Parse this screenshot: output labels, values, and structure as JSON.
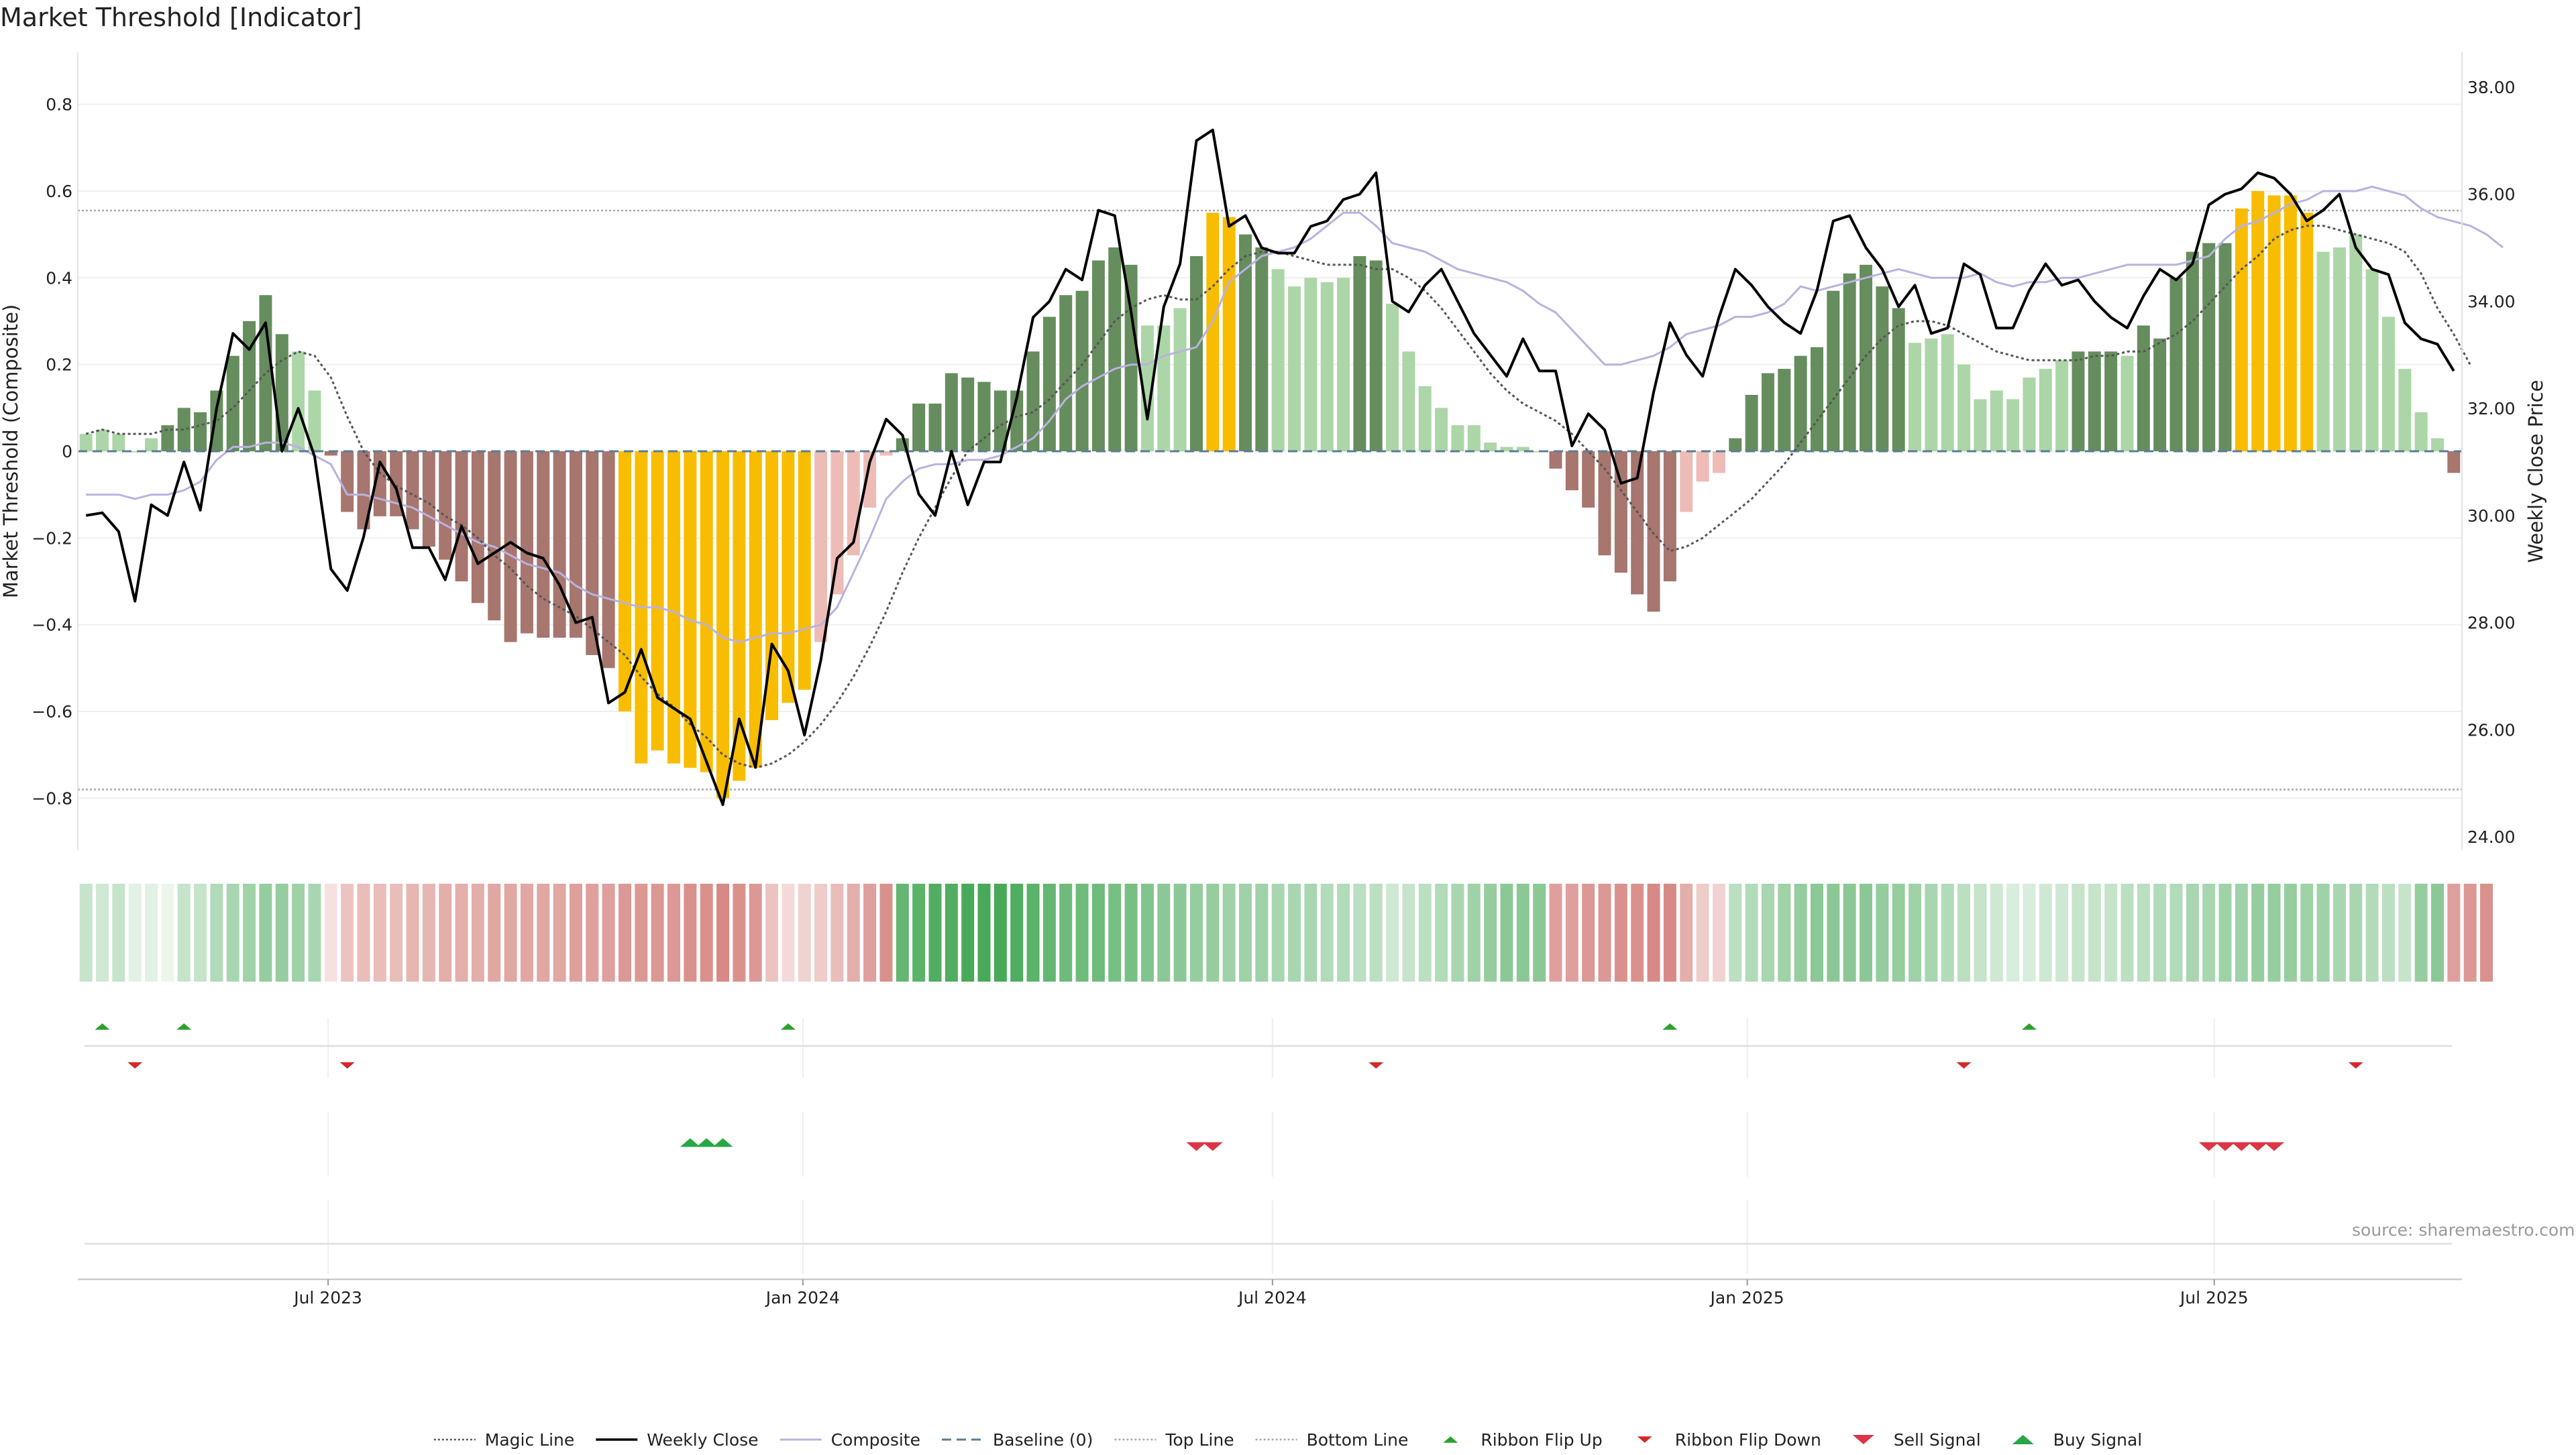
{
  "title": "Market Threshold [Indicator]",
  "source": "source: sharemaestro.com",
  "chart_data": {
    "type": "bar",
    "title": "Market Threshold [Indicator]",
    "ylabel": "Market Threshold (Composite)",
    "y2label": "Weekly Close Price",
    "ylim": [
      -0.92,
      0.92
    ],
    "y2lim": [
      23.75,
      38.65
    ],
    "yticks": [
      -0.8,
      -0.6,
      -0.4,
      -0.2,
      0,
      0.2,
      0.4,
      0.6,
      0.8
    ],
    "ytick_labels": [
      "−0.8",
      "−0.6",
      "−0.4",
      "−0.2",
      "0",
      "0.2",
      "0.4",
      "0.6",
      "0.8"
    ],
    "y2ticks": [
      24,
      26,
      28,
      30,
      32,
      34,
      36,
      38
    ],
    "y2tick_labels": [
      "24.00",
      "26.00",
      "28.00",
      "30.00",
      "32.00",
      "34.00",
      "36.00",
      "38.00"
    ],
    "x_start": "2023-03-26",
    "x_end": "2025-10-05",
    "x_start_date": "2023-03-20",
    "x_ticks": [
      "2023-07-01",
      "2024-01-01",
      "2024-07-01",
      "2025-01-01",
      "2025-07-01"
    ],
    "x_tick_labels": [
      "Jul 2023",
      "Jan 2024",
      "Jul 2024",
      "Jan 2025",
      "Jul 2025"
    ],
    "top_line": 0.555,
    "bottom_line": -0.78,
    "composite": [
      0.04,
      0.05,
      0.04,
      0.0,
      0.03,
      0.06,
      0.1,
      0.09,
      0.14,
      0.22,
      0.3,
      0.36,
      0.27,
      0.23,
      0.14,
      -0.01,
      -0.14,
      -0.18,
      -0.15,
      -0.15,
      -0.18,
      -0.22,
      -0.25,
      -0.3,
      -0.35,
      -0.39,
      -0.44,
      -0.42,
      -0.43,
      -0.43,
      -0.43,
      -0.47,
      -0.5,
      -0.6,
      -0.72,
      -0.69,
      -0.72,
      -0.73,
      -0.74,
      -0.8,
      -0.76,
      -0.73,
      -0.62,
      -0.58,
      -0.55,
      -0.44,
      -0.33,
      -0.24,
      -0.13,
      -0.01,
      0.03,
      0.11,
      0.11,
      0.18,
      0.17,
      0.16,
      0.14,
      0.14,
      0.23,
      0.31,
      0.36,
      0.37,
      0.44,
      0.47,
      0.43,
      0.29,
      0.29,
      0.33,
      0.45,
      0.55,
      0.54,
      0.5,
      0.47,
      0.42,
      0.38,
      0.4,
      0.39,
      0.4,
      0.45,
      0.44,
      0.34,
      0.23,
      0.15,
      0.1,
      0.06,
      0.06,
      0.02,
      0.01,
      0.01,
      0.0,
      -0.04,
      -0.09,
      -0.13,
      -0.24,
      -0.28,
      -0.33,
      -0.37,
      -0.3,
      -0.14,
      -0.07,
      -0.05,
      0.03,
      0.13,
      0.18,
      0.19,
      0.22,
      0.24,
      0.37,
      0.41,
      0.43,
      0.38,
      0.33,
      0.25,
      0.26,
      0.27,
      0.2,
      0.12,
      0.14,
      0.12,
      0.17,
      0.19,
      0.21,
      0.23,
      0.23,
      0.23,
      0.22,
      0.29,
      0.26,
      0.4,
      0.46,
      0.48,
      0.48,
      0.56,
      0.6,
      0.59,
      0.59,
      0.55,
      0.46,
      0.47,
      0.5,
      0.42,
      0.31,
      0.19,
      0.09,
      0.03,
      -0.05
    ],
    "composite_smooth": [
      -0.1,
      -0.1,
      -0.1,
      -0.11,
      -0.1,
      -0.1,
      -0.09,
      -0.07,
      -0.02,
      0.01,
      0.01,
      0.02,
      0.02,
      0.01,
      -0.01,
      -0.03,
      -0.1,
      -0.1,
      -0.11,
      -0.12,
      -0.13,
      -0.15,
      -0.17,
      -0.19,
      -0.21,
      -0.22,
      -0.24,
      -0.26,
      -0.27,
      -0.28,
      -0.31,
      -0.33,
      -0.34,
      -0.35,
      -0.36,
      -0.36,
      -0.37,
      -0.39,
      -0.4,
      -0.43,
      -0.44,
      -0.43,
      -0.42,
      -0.42,
      -0.41,
      -0.4,
      -0.36,
      -0.28,
      -0.2,
      -0.11,
      -0.07,
      -0.04,
      -0.03,
      -0.03,
      -0.02,
      -0.02,
      -0.01,
      0.01,
      0.03,
      0.07,
      0.12,
      0.15,
      0.17,
      0.19,
      0.2,
      0.2,
      0.22,
      0.23,
      0.24,
      0.3,
      0.39,
      0.42,
      0.45,
      0.46,
      0.47,
      0.49,
      0.52,
      0.55,
      0.55,
      0.52,
      0.48,
      0.47,
      0.46,
      0.44,
      0.42,
      0.41,
      0.4,
      0.39,
      0.37,
      0.34,
      0.32,
      0.28,
      0.24,
      0.2,
      0.2,
      0.21,
      0.22,
      0.24,
      0.27,
      0.28,
      0.29,
      0.31,
      0.31,
      0.32,
      0.34,
      0.38,
      0.37,
      0.38,
      0.39,
      0.4,
      0.41,
      0.42,
      0.41,
      0.4,
      0.4,
      0.4,
      0.41,
      0.39,
      0.38,
      0.39,
      0.39,
      0.4,
      0.4,
      0.41,
      0.42,
      0.43,
      0.43,
      0.43,
      0.43,
      0.44,
      0.45,
      0.49,
      0.52,
      0.53,
      0.55,
      0.57,
      0.58,
      0.6,
      0.6,
      0.6,
      0.61,
      0.6,
      0.59,
      0.56,
      0.54,
      0.53,
      0.52,
      0.5,
      0.47
    ],
    "magic_line": [
      0.04,
      0.05,
      0.04,
      0.04,
      0.04,
      0.05,
      0.05,
      0.06,
      0.07,
      0.1,
      0.14,
      0.18,
      0.21,
      0.23,
      0.22,
      0.17,
      0.08,
      0.0,
      -0.05,
      -0.08,
      -0.1,
      -0.12,
      -0.15,
      -0.17,
      -0.2,
      -0.24,
      -0.27,
      -0.31,
      -0.34,
      -0.36,
      -0.38,
      -0.41,
      -0.44,
      -0.47,
      -0.52,
      -0.56,
      -0.59,
      -0.63,
      -0.66,
      -0.7,
      -0.72,
      -0.73,
      -0.72,
      -0.7,
      -0.67,
      -0.63,
      -0.58,
      -0.52,
      -0.45,
      -0.37,
      -0.28,
      -0.2,
      -0.13,
      -0.06,
      0.0,
      0.03,
      0.06,
      0.08,
      0.09,
      0.12,
      0.16,
      0.2,
      0.25,
      0.3,
      0.33,
      0.35,
      0.36,
      0.35,
      0.35,
      0.38,
      0.42,
      0.45,
      0.46,
      0.46,
      0.45,
      0.44,
      0.43,
      0.43,
      0.43,
      0.42,
      0.42,
      0.4,
      0.37,
      0.33,
      0.28,
      0.23,
      0.18,
      0.14,
      0.11,
      0.09,
      0.07,
      0.04,
      0.0,
      -0.04,
      -0.09,
      -0.14,
      -0.19,
      -0.23,
      -0.22,
      -0.2,
      -0.17,
      -0.14,
      -0.11,
      -0.07,
      -0.03,
      0.02,
      0.07,
      0.12,
      0.17,
      0.22,
      0.26,
      0.29,
      0.3,
      0.3,
      0.29,
      0.27,
      0.25,
      0.23,
      0.22,
      0.21,
      0.21,
      0.21,
      0.21,
      0.22,
      0.22,
      0.23,
      0.23,
      0.25,
      0.27,
      0.3,
      0.34,
      0.38,
      0.42,
      0.45,
      0.49,
      0.51,
      0.52,
      0.52,
      0.51,
      0.5,
      0.49,
      0.48,
      0.46,
      0.41,
      0.33,
      0.27,
      0.2
    ],
    "weekly_close": [
      30.0,
      30.05,
      29.7,
      28.4,
      30.2,
      30.0,
      31.0,
      30.1,
      32.0,
      33.4,
      33.1,
      33.6,
      31.2,
      32.0,
      31.1,
      29.0,
      28.6,
      29.6,
      31.0,
      30.5,
      29.4,
      29.4,
      28.8,
      29.8,
      29.1,
      29.3,
      29.5,
      29.3,
      29.2,
      28.7,
      28.0,
      28.1,
      26.5,
      26.7,
      27.5,
      26.6,
      26.4,
      26.2,
      25.4,
      24.6,
      26.2,
      25.3,
      27.6,
      27.1,
      25.9,
      27.3,
      29.2,
      29.5,
      31.0,
      31.8,
      31.5,
      30.4,
      30.0,
      31.2,
      30.2,
      31.0,
      31.0,
      32.2,
      33.7,
      34.0,
      34.6,
      34.4,
      35.7,
      35.6,
      33.8,
      31.8,
      33.9,
      34.7,
      37.0,
      37.2,
      35.4,
      35.6,
      35.0,
      34.9,
      34.9,
      35.4,
      35.5,
      35.9,
      36.0,
      36.4,
      34.0,
      33.8,
      34.3,
      34.6,
      34.0,
      33.4,
      33.0,
      32.6,
      33.3,
      32.7,
      32.7,
      31.3,
      31.9,
      31.6,
      30.6,
      30.7,
      32.3,
      33.6,
      33.0,
      32.6,
      33.7,
      34.6,
      34.3,
      33.9,
      33.6,
      33.4,
      34.2,
      35.5,
      35.6,
      35.0,
      34.6,
      33.9,
      34.3,
      33.4,
      33.5,
      34.7,
      34.5,
      33.5,
      33.5,
      34.2,
      34.7,
      34.3,
      34.4,
      34.0,
      33.7,
      33.5,
      34.1,
      34.6,
      34.4,
      34.7,
      35.8,
      36.0,
      36.1,
      36.4,
      36.3,
      36.0,
      35.5,
      35.7,
      36.0,
      35.0,
      34.6,
      34.5,
      33.6,
      33.3,
      33.2,
      32.7
    ]
  },
  "ribbon": [
    0.3,
    0.25,
    0.3,
    0.15,
    0.15,
    0.1,
    0.3,
    0.3,
    0.4,
    0.45,
    0.5,
    0.55,
    0.55,
    0.5,
    0.45,
    0.2,
    0.4,
    0.45,
    0.45,
    0.45,
    0.5,
    0.5,
    0.55,
    0.55,
    0.55,
    0.6,
    0.6,
    0.6,
    0.6,
    0.6,
    0.65,
    0.65,
    0.65,
    0.7,
    0.7,
    0.7,
    0.7,
    0.75,
    0.75,
    0.8,
    0.75,
    0.7,
    0.4,
    0.25,
    0.3,
    0.35,
    0.45,
    0.55,
    0.65,
    0.75,
    0.8,
    0.85,
    0.9,
    0.9,
    0.95,
    0.95,
    0.95,
    0.9,
    0.85,
    0.8,
    0.75,
    0.75,
    0.75,
    0.7,
    0.7,
    0.65,
    0.6,
    0.6,
    0.55,
    0.55,
    0.5,
    0.5,
    0.5,
    0.45,
    0.45,
    0.45,
    0.4,
    0.4,
    0.35,
    0.35,
    0.25,
    0.3,
    0.35,
    0.4,
    0.45,
    0.5,
    0.55,
    0.6,
    0.6,
    0.6,
    0.65,
    0.65,
    0.7,
    0.7,
    0.75,
    0.75,
    0.8,
    0.8,
    0.55,
    0.35,
    0.3,
    0.35,
    0.4,
    0.45,
    0.5,
    0.55,
    0.6,
    0.6,
    0.6,
    0.6,
    0.55,
    0.55,
    0.5,
    0.45,
    0.4,
    0.35,
    0.3,
    0.25,
    0.2,
    0.2,
    0.25,
    0.25,
    0.3,
    0.3,
    0.3,
    0.35,
    0.35,
    0.4,
    0.4,
    0.45,
    0.45,
    0.5,
    0.5,
    0.55,
    0.55,
    0.55,
    0.5,
    0.5,
    0.45,
    0.45,
    0.4,
    0.35,
    0.3,
    0.55,
    0.6,
    0.65,
    0.7,
    0.75
  ],
  "ribbon_flip_up": [
    1,
    6,
    43,
    97,
    119
  ],
  "ribbon_flip_down": [
    3,
    16,
    79,
    115,
    139
  ],
  "buy_signal": [
    37,
    38,
    39
  ],
  "sell_signal": [
    68,
    69,
    130,
    131,
    132,
    133,
    134
  ],
  "colors": {
    "strong_up": "#668d5d",
    "weak_up": "#acd6a7",
    "strong_down": "#a6766f",
    "weak_down": "#eebcb6",
    "extreme": "#f8bd00",
    "magic_line": "#555555",
    "weekly_close": "#000000",
    "composite": "#b9b2e0",
    "baseline": "#5b7c99",
    "top_line": "#aaaaaa",
    "bottom_line": "#aaaaaa",
    "ribbon_up": "#3ea44f",
    "ribbon_down": "#cd6c66",
    "flip_up": "#2ca02c",
    "flip_down": "#d62728",
    "sell": "#dc3545",
    "buy": "#28a745"
  },
  "legend": [
    {
      "label": "Magic Line",
      "kind": "line",
      "color": "#555555",
      "dash": "3,3",
      "width": 2.5
    },
    {
      "label": "Weekly Close",
      "kind": "line",
      "color": "#000000",
      "dash": "",
      "width": 3.5
    },
    {
      "label": "Composite",
      "kind": "line",
      "color": "#b9b2e0",
      "dash": "",
      "width": 3
    },
    {
      "label": "Baseline (0)",
      "kind": "line",
      "color": "#5b7c99",
      "dash": "14,8",
      "width": 3
    },
    {
      "label": "Top Line",
      "kind": "line",
      "color": "#aaaaaa",
      "dash": "3,3",
      "width": 2.5
    },
    {
      "label": "Bottom Line",
      "kind": "line",
      "color": "#aaaaaa",
      "dash": "3,3",
      "width": 2.5
    },
    {
      "label": "Ribbon Flip Up",
      "kind": "tri-up",
      "color": "#2ca02c",
      "size": 11
    },
    {
      "label": "Ribbon Flip Down",
      "kind": "tri-down",
      "color": "#d62728",
      "size": 11
    },
    {
      "label": "Sell Signal",
      "kind": "tri-down",
      "color": "#dc3545",
      "size": 16
    },
    {
      "label": "Buy Signal",
      "kind": "tri-up",
      "color": "#28a745",
      "size": 16
    }
  ]
}
